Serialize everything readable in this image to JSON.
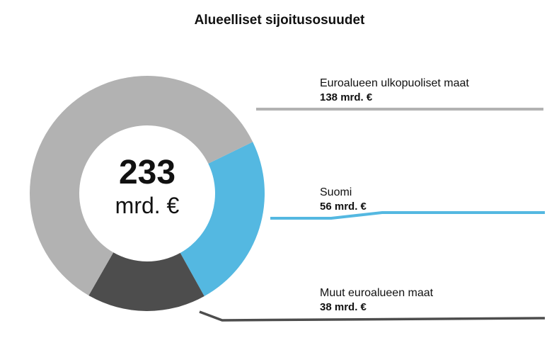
{
  "chart_data": {
    "type": "pie",
    "title": "Alueelliset sijoitusosuudet",
    "total": {
      "value": "233",
      "unit": "mrd. €"
    },
    "slices": [
      {
        "label": "Euroalueen ulkopuoliset maat",
        "value": 138,
        "value_text": "138 mrd. €",
        "color": "#b2b2b2"
      },
      {
        "label": "Suomi",
        "value": 56,
        "value_text": "56 mrd. €",
        "color": "#54b8e1"
      },
      {
        "label": "Muut euroalueen maat",
        "value": 38,
        "value_text": "38 mrd. €",
        "color": "#4d4d4d"
      }
    ]
  }
}
